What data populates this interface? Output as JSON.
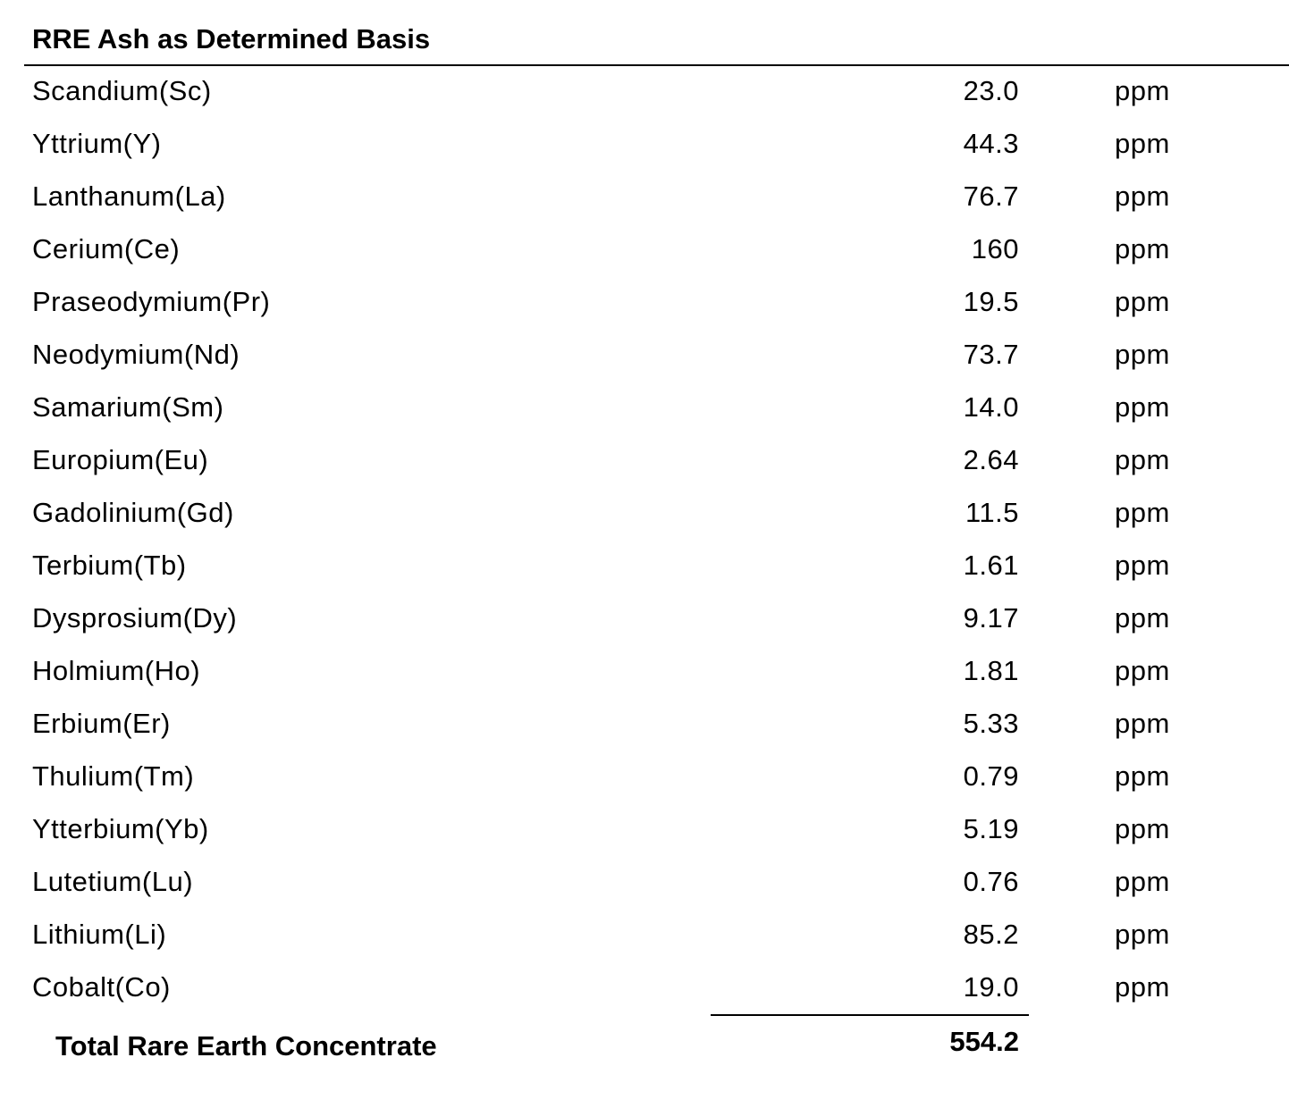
{
  "title": "RRE Ash as Determined Basis",
  "rows": [
    {
      "name": "Scandium(Sc)",
      "value": "23.0",
      "unit": "ppm"
    },
    {
      "name": "Yttrium(Y)",
      "value": "44.3",
      "unit": "ppm"
    },
    {
      "name": "Lanthanum(La)",
      "value": "76.7",
      "unit": "ppm"
    },
    {
      "name": "Cerium(Ce)",
      "value": "160",
      "unit": "ppm"
    },
    {
      "name": "Praseodymium(Pr)",
      "value": "19.5",
      "unit": "ppm"
    },
    {
      "name": "Neodymium(Nd)",
      "value": "73.7",
      "unit": "ppm"
    },
    {
      "name": "Samarium(Sm)",
      "value": "14.0",
      "unit": "ppm"
    },
    {
      "name": "Europium(Eu)",
      "value": "2.64",
      "unit": "ppm"
    },
    {
      "name": "Gadolinium(Gd)",
      "value": "11.5",
      "unit": "ppm"
    },
    {
      "name": "Terbium(Tb)",
      "value": "1.61",
      "unit": "ppm"
    },
    {
      "name": "Dysprosium(Dy)",
      "value": "9.17",
      "unit": "ppm"
    },
    {
      "name": "Holmium(Ho)",
      "value": "1.81",
      "unit": "ppm"
    },
    {
      "name": "Erbium(Er)",
      "value": "5.33",
      "unit": "ppm"
    },
    {
      "name": "Thulium(Tm)",
      "value": "0.79",
      "unit": "ppm"
    },
    {
      "name": "Ytterbium(Yb)",
      "value": "5.19",
      "unit": "ppm"
    },
    {
      "name": "Lutetium(Lu)",
      "value": "0.76",
      "unit": "ppm"
    },
    {
      "name": "Lithium(Li)",
      "value": "85.2",
      "unit": "ppm"
    },
    {
      "name": "Cobalt(Co)",
      "value": "19.0",
      "unit": "ppm"
    }
  ],
  "total": {
    "label": "Total Rare Earth Concentrate",
    "value": "554.2"
  }
}
